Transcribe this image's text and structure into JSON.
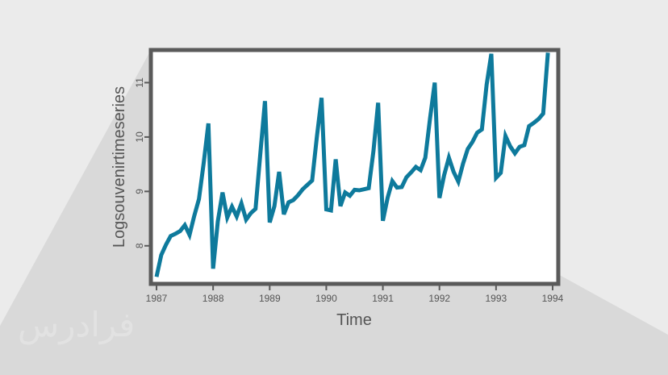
{
  "watermark": "فرادرس",
  "colors": {
    "line": "#0e7a9c",
    "frame": "#5a5a5a",
    "plot_bg": "#ffffff",
    "page_bg": "#ebebeb",
    "shadow": "#d9d9d9"
  },
  "chart_data": {
    "type": "line",
    "title": "",
    "xlabel": "Time",
    "ylabel": "Logsouvenirtimeseries",
    "xlim": [
      1986.9,
      1994.1
    ],
    "ylim": [
      7.3,
      11.6
    ],
    "x_ticks": [
      1987,
      1988,
      1989,
      1990,
      1991,
      1992,
      1993,
      1994
    ],
    "y_ticks": [
      8,
      9,
      10,
      11
    ],
    "grid": false,
    "series": [
      {
        "x_start": 1987.0,
        "x_step": 0.0833333,
        "values": [
          7.43,
          7.83,
          8.02,
          8.18,
          8.22,
          8.27,
          8.38,
          8.2,
          8.55,
          8.86,
          9.52,
          10.25,
          7.58,
          8.45,
          8.98,
          8.52,
          8.72,
          8.54,
          8.78,
          8.48,
          8.6,
          8.68,
          9.68,
          10.66,
          8.43,
          8.73,
          9.36,
          8.58,
          8.8,
          8.84,
          8.93,
          9.04,
          9.12,
          9.2,
          10.0,
          10.72,
          8.67,
          8.65,
          9.59,
          8.73,
          8.98,
          8.92,
          9.03,
          9.02,
          9.04,
          9.06,
          9.74,
          10.63,
          8.46,
          8.88,
          9.19,
          9.07,
          9.08,
          9.26,
          9.35,
          9.45,
          9.39,
          9.62,
          10.34,
          11.0,
          8.88,
          9.3,
          9.62,
          9.36,
          9.18,
          9.51,
          9.78,
          9.91,
          10.08,
          10.14,
          10.96,
          11.53,
          9.25,
          9.34,
          10.02,
          9.83,
          9.7,
          9.82,
          9.85,
          10.2,
          10.26,
          10.33,
          10.43,
          11.55
        ]
      }
    ]
  }
}
